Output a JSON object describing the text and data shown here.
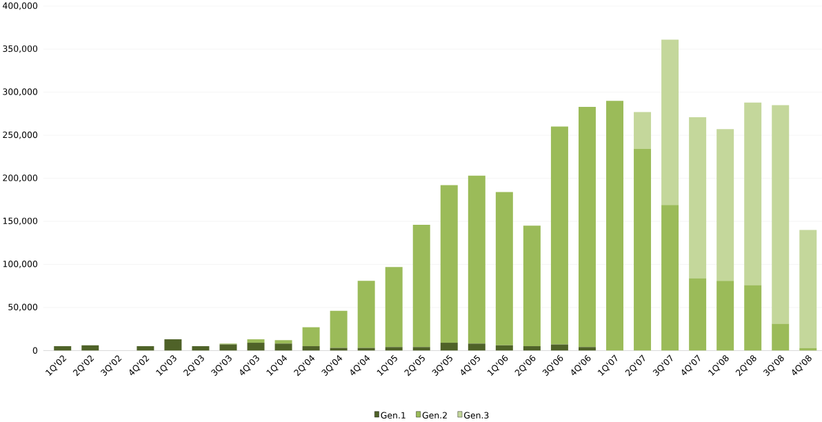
{
  "chart_data": {
    "type": "bar",
    "stacked": true,
    "grid": "y",
    "legend": "bottom",
    "categories": [
      "1Q'02",
      "2Q'02",
      "3Q'02",
      "4Q'02",
      "1Q'03",
      "2Q'03",
      "3Q'03",
      "4Q'03",
      "1Q'04",
      "2Q'04",
      "3Q'04",
      "4Q'04",
      "1Q'05",
      "2Q'05",
      "3Q'05",
      "4Q'05",
      "1Q'06",
      "2Q'06",
      "3Q'06",
      "4Q'06",
      "1Q'07",
      "2Q'07",
      "3Q'07",
      "4Q'07",
      "1Q'08",
      "2Q'08",
      "3Q'08",
      "4Q'08"
    ],
    "series": [
      {
        "name": "Gen.1",
        "color": "#4f6228",
        "values": [
          5000,
          6000,
          0,
          5000,
          13000,
          5000,
          7000,
          9000,
          8000,
          5000,
          3000,
          3000,
          4000,
          4000,
          9000,
          8000,
          6000,
          5000,
          7000,
          4000,
          0,
          0,
          0,
          0,
          0,
          0,
          0,
          0
        ]
      },
      {
        "name": "Gen.2",
        "color": "#9bbb59",
        "values": [
          0,
          0,
          0,
          0,
          0,
          0,
          1000,
          4000,
          4000,
          22000,
          43000,
          78000,
          93000,
          142000,
          183000,
          195000,
          178000,
          140000,
          253000,
          279000,
          290000,
          234000,
          169000,
          84000,
          81000,
          76000,
          31000,
          3000
        ]
      },
      {
        "name": "Gen.3",
        "color": "#c4d79b",
        "values": [
          0,
          0,
          0,
          0,
          0,
          0,
          0,
          0,
          0,
          0,
          0,
          0,
          0,
          0,
          0,
          0,
          0,
          0,
          0,
          0,
          0,
          43000,
          192000,
          187000,
          176000,
          212000,
          254000,
          137000
        ]
      }
    ],
    "ylim": [
      0,
      400000
    ],
    "yticks": [
      {
        "value": 0,
        "label": "0"
      },
      {
        "value": 50000,
        "label": "50,000"
      },
      {
        "value": 100000,
        "label": "100,000"
      },
      {
        "value": 150000,
        "label": "150,000"
      },
      {
        "value": 200000,
        "label": "200,000"
      },
      {
        "value": 250000,
        "label": "250,000"
      },
      {
        "value": 300000,
        "label": "300,000"
      },
      {
        "value": 350000,
        "label": "350,000"
      },
      {
        "value": 400000,
        "label": "400,000"
      }
    ]
  }
}
